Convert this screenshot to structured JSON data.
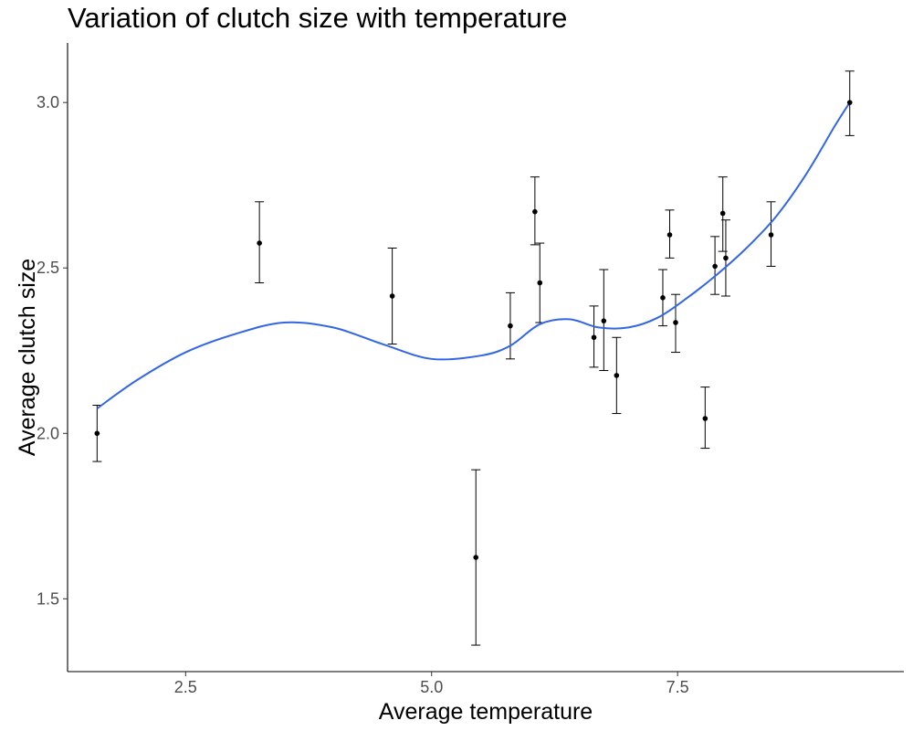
{
  "chart_data": {
    "type": "scatter",
    "title": "Variation of clutch size with temperature",
    "xlabel": "Average temperature",
    "ylabel": "Average clutch size",
    "xlim": [
      1.3,
      9.8
    ],
    "ylim": [
      1.28,
      3.18
    ],
    "x_ticks": [
      2.5,
      5.0,
      7.5
    ],
    "x_tick_labels": [
      "2.5",
      "5.0",
      "7.5"
    ],
    "y_ticks": [
      1.5,
      2.0,
      2.5,
      3.0
    ],
    "y_tick_labels": [
      "1.5",
      "2.0",
      "2.5",
      "3.0"
    ],
    "grid": false,
    "points": [
      {
        "x": 1.6,
        "y": 2.0,
        "ymin": 1.915,
        "ymax": 2.085
      },
      {
        "x": 3.25,
        "y": 2.575,
        "ymin": 2.455,
        "ymax": 2.7
      },
      {
        "x": 4.6,
        "y": 2.415,
        "ymin": 2.27,
        "ymax": 2.56
      },
      {
        "x": 5.45,
        "y": 1.625,
        "ymin": 1.36,
        "ymax": 1.89
      },
      {
        "x": 5.8,
        "y": 2.325,
        "ymin": 2.225,
        "ymax": 2.425
      },
      {
        "x": 6.05,
        "y": 2.67,
        "ymin": 2.57,
        "ymax": 2.775
      },
      {
        "x": 6.1,
        "y": 2.455,
        "ymin": 2.335,
        "ymax": 2.575
      },
      {
        "x": 6.65,
        "y": 2.29,
        "ymin": 2.2,
        "ymax": 2.385
      },
      {
        "x": 6.75,
        "y": 2.34,
        "ymin": 2.19,
        "ymax": 2.495
      },
      {
        "x": 6.88,
        "y": 2.175,
        "ymin": 2.06,
        "ymax": 2.29
      },
      {
        "x": 7.35,
        "y": 2.41,
        "ymin": 2.325,
        "ymax": 2.495
      },
      {
        "x": 7.42,
        "y": 2.6,
        "ymin": 2.53,
        "ymax": 2.675
      },
      {
        "x": 7.48,
        "y": 2.335,
        "ymin": 2.245,
        "ymax": 2.42
      },
      {
        "x": 7.78,
        "y": 2.045,
        "ymin": 1.955,
        "ymax": 2.14
      },
      {
        "x": 7.88,
        "y": 2.505,
        "ymin": 2.42,
        "ymax": 2.595
      },
      {
        "x": 7.96,
        "y": 2.665,
        "ymin": 2.55,
        "ymax": 2.775
      },
      {
        "x": 7.99,
        "y": 2.53,
        "ymin": 2.415,
        "ymax": 2.645
      },
      {
        "x": 8.45,
        "y": 2.6,
        "ymin": 2.505,
        "ymax": 2.7
      },
      {
        "x": 9.25,
        "y": 3.0,
        "ymin": 2.9,
        "ymax": 3.095
      }
    ],
    "smooth_line": {
      "color": "#3366e6",
      "x": [
        1.6,
        2.0,
        2.5,
        3.0,
        3.5,
        4.0,
        4.5,
        5.0,
        5.5,
        5.8,
        6.1,
        6.4,
        6.7,
        7.0,
        7.3,
        7.6,
        7.9,
        8.2,
        8.5,
        8.8,
        9.1,
        9.25
      ],
      "y": [
        2.075,
        2.16,
        2.245,
        2.3,
        2.335,
        2.32,
        2.27,
        2.225,
        2.235,
        2.265,
        2.33,
        2.345,
        2.32,
        2.32,
        2.35,
        2.41,
        2.48,
        2.56,
        2.655,
        2.78,
        2.93,
        3.0
      ]
    }
  }
}
